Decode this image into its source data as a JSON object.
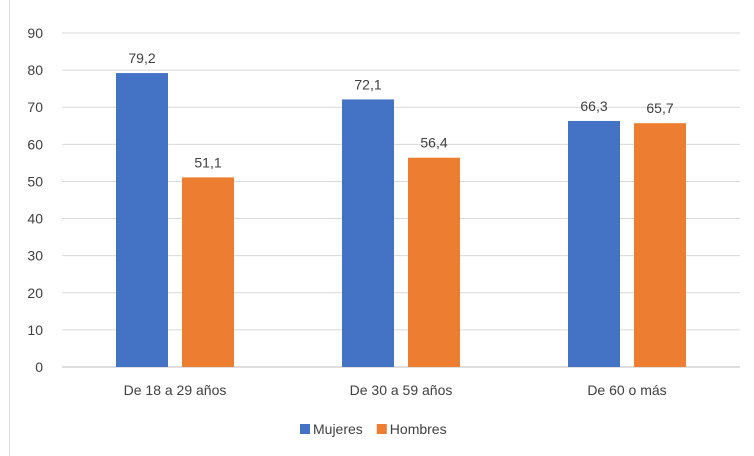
{
  "chart_data": {
    "type": "bar",
    "categories": [
      "De 18 a 29 años",
      "De 30 a 59 años",
      "De 60 o más"
    ],
    "series": [
      {
        "name": "Mujeres",
        "values": [
          79.2,
          72.1,
          66.3
        ],
        "labels": [
          "79,2",
          "72,1",
          "66,3"
        ],
        "color": "#4472C4"
      },
      {
        "name": "Hombres",
        "values": [
          51.1,
          56.4,
          65.7
        ],
        "labels": [
          "51,1",
          "56,4",
          "65,7"
        ],
        "color": "#ED7D31"
      }
    ],
    "ylim": [
      0,
      90
    ],
    "yticks": [
      "0",
      "10",
      "20",
      "30",
      "40",
      "50",
      "60",
      "70",
      "80",
      "90"
    ],
    "grid": true,
    "legend": "bottom",
    "title": "",
    "xlabel": "",
    "ylabel": ""
  }
}
